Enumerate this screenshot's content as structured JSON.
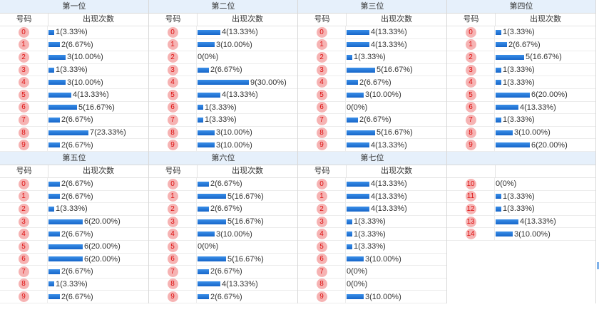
{
  "headers": {
    "number": "号码",
    "count": "出现次数"
  },
  "colors": {
    "ball_bg": "#f6b3b3",
    "ball_text": "#dd1111",
    "bar": "#1766c9",
    "title_bg": "#e6f0fb"
  },
  "panels": [
    {
      "title": "第一位",
      "rows": [
        {
          "n": "0",
          "c": 1,
          "t": "1(3.33%)"
        },
        {
          "n": "1",
          "c": 2,
          "t": "2(6.67%)"
        },
        {
          "n": "2",
          "c": 3,
          "t": "3(10.00%)"
        },
        {
          "n": "3",
          "c": 1,
          "t": "1(3.33%)"
        },
        {
          "n": "4",
          "c": 3,
          "t": "3(10.00%)"
        },
        {
          "n": "5",
          "c": 4,
          "t": "4(13.33%)"
        },
        {
          "n": "6",
          "c": 5,
          "t": "5(16.67%)"
        },
        {
          "n": "7",
          "c": 2,
          "t": "2(6.67%)"
        },
        {
          "n": "8",
          "c": 7,
          "t": "7(23.33%)"
        },
        {
          "n": "9",
          "c": 2,
          "t": "2(6.67%)"
        }
      ]
    },
    {
      "title": "第二位",
      "rows": [
        {
          "n": "0",
          "c": 4,
          "t": "4(13.33%)"
        },
        {
          "n": "1",
          "c": 3,
          "t": "3(10.00%)"
        },
        {
          "n": "2",
          "c": 0,
          "t": "0(0%)"
        },
        {
          "n": "3",
          "c": 2,
          "t": "2(6.67%)"
        },
        {
          "n": "4",
          "c": 9,
          "t": "9(30.00%)"
        },
        {
          "n": "5",
          "c": 4,
          "t": "4(13.33%)"
        },
        {
          "n": "6",
          "c": 1,
          "t": "1(3.33%)"
        },
        {
          "n": "7",
          "c": 1,
          "t": "1(3.33%)"
        },
        {
          "n": "8",
          "c": 3,
          "t": "3(10.00%)"
        },
        {
          "n": "9",
          "c": 3,
          "t": "3(10.00%)"
        }
      ]
    },
    {
      "title": "第三位",
      "rows": [
        {
          "n": "0",
          "c": 4,
          "t": "4(13.33%)"
        },
        {
          "n": "1",
          "c": 4,
          "t": "4(13.33%)"
        },
        {
          "n": "2",
          "c": 1,
          "t": "1(3.33%)"
        },
        {
          "n": "3",
          "c": 5,
          "t": "5(16.67%)"
        },
        {
          "n": "4",
          "c": 2,
          "t": "2(6.67%)"
        },
        {
          "n": "5",
          "c": 3,
          "t": "3(10.00%)"
        },
        {
          "n": "6",
          "c": 0,
          "t": "0(0%)"
        },
        {
          "n": "7",
          "c": 2,
          "t": "2(6.67%)"
        },
        {
          "n": "8",
          "c": 5,
          "t": "5(16.67%)"
        },
        {
          "n": "9",
          "c": 4,
          "t": "4(13.33%)"
        }
      ]
    },
    {
      "title": "第四位",
      "rows": [
        {
          "n": "0",
          "c": 1,
          "t": "1(3.33%)"
        },
        {
          "n": "1",
          "c": 2,
          "t": "2(6.67%)"
        },
        {
          "n": "2",
          "c": 5,
          "t": "5(16.67%)"
        },
        {
          "n": "3",
          "c": 1,
          "t": "1(3.33%)"
        },
        {
          "n": "4",
          "c": 1,
          "t": "1(3.33%)"
        },
        {
          "n": "5",
          "c": 6,
          "t": "6(20.00%)"
        },
        {
          "n": "6",
          "c": 4,
          "t": "4(13.33%)"
        },
        {
          "n": "7",
          "c": 1,
          "t": "1(3.33%)"
        },
        {
          "n": "8",
          "c": 3,
          "t": "3(10.00%)"
        },
        {
          "n": "9",
          "c": 6,
          "t": "6(20.00%)"
        }
      ]
    },
    {
      "title": "第五位",
      "rows": [
        {
          "n": "0",
          "c": 2,
          "t": "2(6.67%)"
        },
        {
          "n": "1",
          "c": 2,
          "t": "2(6.67%)"
        },
        {
          "n": "2",
          "c": 1,
          "t": "1(3.33%)"
        },
        {
          "n": "3",
          "c": 6,
          "t": "6(20.00%)"
        },
        {
          "n": "4",
          "c": 2,
          "t": "2(6.67%)"
        },
        {
          "n": "5",
          "c": 6,
          "t": "6(20.00%)"
        },
        {
          "n": "6",
          "c": 6,
          "t": "6(20.00%)"
        },
        {
          "n": "7",
          "c": 2,
          "t": "2(6.67%)"
        },
        {
          "n": "8",
          "c": 1,
          "t": "1(3.33%)"
        },
        {
          "n": "9",
          "c": 2,
          "t": "2(6.67%)"
        }
      ]
    },
    {
      "title": "第六位",
      "rows": [
        {
          "n": "0",
          "c": 2,
          "t": "2(6.67%)"
        },
        {
          "n": "1",
          "c": 5,
          "t": "5(16.67%)"
        },
        {
          "n": "2",
          "c": 2,
          "t": "2(6.67%)"
        },
        {
          "n": "3",
          "c": 5,
          "t": "5(16.67%)"
        },
        {
          "n": "4",
          "c": 3,
          "t": "3(10.00%)"
        },
        {
          "n": "5",
          "c": 0,
          "t": "0(0%)"
        },
        {
          "n": "6",
          "c": 5,
          "t": "5(16.67%)"
        },
        {
          "n": "7",
          "c": 2,
          "t": "2(6.67%)"
        },
        {
          "n": "8",
          "c": 4,
          "t": "4(13.33%)"
        },
        {
          "n": "9",
          "c": 2,
          "t": "2(6.67%)"
        }
      ]
    },
    {
      "title": "第七位",
      "rows": [
        {
          "n": "0",
          "c": 4,
          "t": "4(13.33%)"
        },
        {
          "n": "1",
          "c": 4,
          "t": "4(13.33%)"
        },
        {
          "n": "2",
          "c": 4,
          "t": "4(13.33%)"
        },
        {
          "n": "3",
          "c": 1,
          "t": "1(3.33%)"
        },
        {
          "n": "4",
          "c": 1,
          "t": "1(3.33%)"
        },
        {
          "n": "5",
          "c": 1,
          "t": "1(3.33%)"
        },
        {
          "n": "6",
          "c": 3,
          "t": "3(10.00%)"
        },
        {
          "n": "7",
          "c": 0,
          "t": "0(0%)"
        },
        {
          "n": "8",
          "c": 0,
          "t": "0(0%)"
        },
        {
          "n": "9",
          "c": 3,
          "t": "3(10.00%)"
        }
      ]
    },
    {
      "title": "",
      "noHeader": true,
      "rows": [
        {
          "n": "10",
          "c": 0,
          "t": "0(0%)"
        },
        {
          "n": "11",
          "c": 1,
          "t": "1(3.33%)"
        },
        {
          "n": "12",
          "c": 1,
          "t": "1(3.33%)"
        },
        {
          "n": "13",
          "c": 4,
          "t": "4(13.33%)"
        },
        {
          "n": "14",
          "c": 3,
          "t": "3(10.00%)"
        }
      ]
    }
  ]
}
